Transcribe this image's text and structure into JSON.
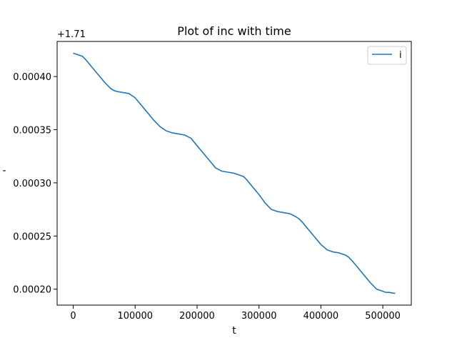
{
  "chart_data": {
    "type": "line",
    "title": "Plot of inc with time",
    "xlabel": "t",
    "ylabel": "-",
    "y_offset_label": "+1.71",
    "y_offset": 1.71,
    "xlim": [
      -26000,
      546000
    ],
    "ylim": [
      0.000185,
      0.000433
    ],
    "x_ticks": [
      0,
      100000,
      200000,
      300000,
      400000,
      500000
    ],
    "x_tick_labels": [
      "0",
      "100000",
      "200000",
      "300000",
      "400000",
      "500000"
    ],
    "y_ticks": [
      0.0002,
      0.00025,
      0.0003,
      0.00035,
      0.0004
    ],
    "y_tick_labels": [
      "0.00020",
      "0.00025",
      "0.00030",
      "0.00035",
      "0.00040"
    ],
    "grid": false,
    "legend_position": "top-right",
    "series": [
      {
        "name": "i",
        "color": "#1f77b4",
        "x": [
          0,
          5000,
          10000,
          15000,
          20000,
          30000,
          40000,
          50000,
          60000,
          65000,
          70000,
          80000,
          90000,
          95000,
          100000,
          110000,
          120000,
          130000,
          140000,
          150000,
          155000,
          160000,
          170000,
          180000,
          190000,
          200000,
          210000,
          220000,
          230000,
          240000,
          250000,
          260000,
          270000,
          275000,
          280000,
          290000,
          300000,
          310000,
          320000,
          330000,
          340000,
          350000,
          360000,
          365000,
          370000,
          380000,
          390000,
          400000,
          410000,
          420000,
          430000,
          440000,
          445000,
          450000,
          460000,
          470000,
          480000,
          490000,
          500000,
          505000,
          510000,
          520000
        ],
        "y": [
          0.000422,
          0.000421,
          0.00042,
          0.000419,
          0.000416,
          0.000409,
          0.000402,
          0.000395,
          0.000389,
          0.000387,
          0.000386,
          0.000385,
          0.000384,
          0.000382,
          0.00038,
          0.000373,
          0.000366,
          0.000359,
          0.000353,
          0.000349,
          0.000348,
          0.000347,
          0.000346,
          0.000345,
          0.000342,
          0.000335,
          0.000328,
          0.000321,
          0.000314,
          0.000311,
          0.00031,
          0.000309,
          0.000307,
          0.000306,
          0.000303,
          0.000296,
          0.000289,
          0.000281,
          0.000275,
          0.000273,
          0.000272,
          0.000271,
          0.000268,
          0.000266,
          0.000263,
          0.000256,
          0.000249,
          0.000242,
          0.000237,
          0.000235,
          0.000234,
          0.000232,
          0.00023,
          0.000227,
          0.00022,
          0.000213,
          0.000206,
          0.0002,
          0.000198,
          0.000197,
          0.000197,
          0.000196
        ]
      }
    ]
  }
}
